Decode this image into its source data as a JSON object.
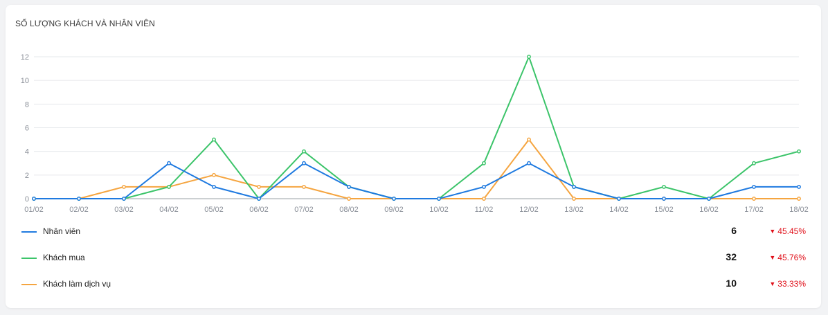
{
  "title": "SỐ LƯỢNG KHÁCH VÀ NHÂN VIÊN",
  "chart_data": {
    "type": "line",
    "title": "SỐ LƯỢNG KHÁCH VÀ NHÂN VIÊN",
    "xlabel": "",
    "ylabel": "",
    "x": [
      "01/02",
      "02/02",
      "03/02",
      "04/02",
      "05/02",
      "06/02",
      "07/02",
      "08/02",
      "09/02",
      "10/02",
      "11/02",
      "12/02",
      "13/02",
      "14/02",
      "15/02",
      "16/02",
      "17/02",
      "18/02"
    ],
    "ylim": [
      0,
      12
    ],
    "yticks": [
      0,
      2,
      4,
      6,
      8,
      10,
      12
    ],
    "grid": true,
    "legend_position": "bottom",
    "series": [
      {
        "name": "Nhân viên",
        "color": "#1f7ae0",
        "values": [
          0,
          0,
          0,
          3,
          1,
          0,
          3,
          1,
          0,
          0,
          1,
          3,
          1,
          0,
          0,
          0,
          1,
          1
        ]
      },
      {
        "name": "Khách mua",
        "color": "#3cc46a",
        "values": [
          0,
          0,
          0,
          1,
          5,
          0,
          4,
          1,
          0,
          0,
          3,
          12,
          1,
          0,
          1,
          0,
          3,
          4
        ]
      },
      {
        "name": "Khách làm dịch vụ",
        "color": "#f5a540",
        "values": [
          0,
          0,
          1,
          1,
          2,
          1,
          1,
          0,
          0,
          0,
          0,
          5,
          0,
          0,
          0,
          0,
          0,
          0
        ]
      }
    ]
  },
  "legend": [
    {
      "name": "Nhân viên",
      "color": "#1f7ae0",
      "total": "6",
      "change": "45.45%"
    },
    {
      "name": "Khách mua",
      "color": "#3cc46a",
      "total": "32",
      "change": "45.76%"
    },
    {
      "name": "Khách làm dịch vụ",
      "color": "#f5a540",
      "total": "10",
      "change": "33.33%"
    }
  ],
  "down_arrow_icon": "▼"
}
